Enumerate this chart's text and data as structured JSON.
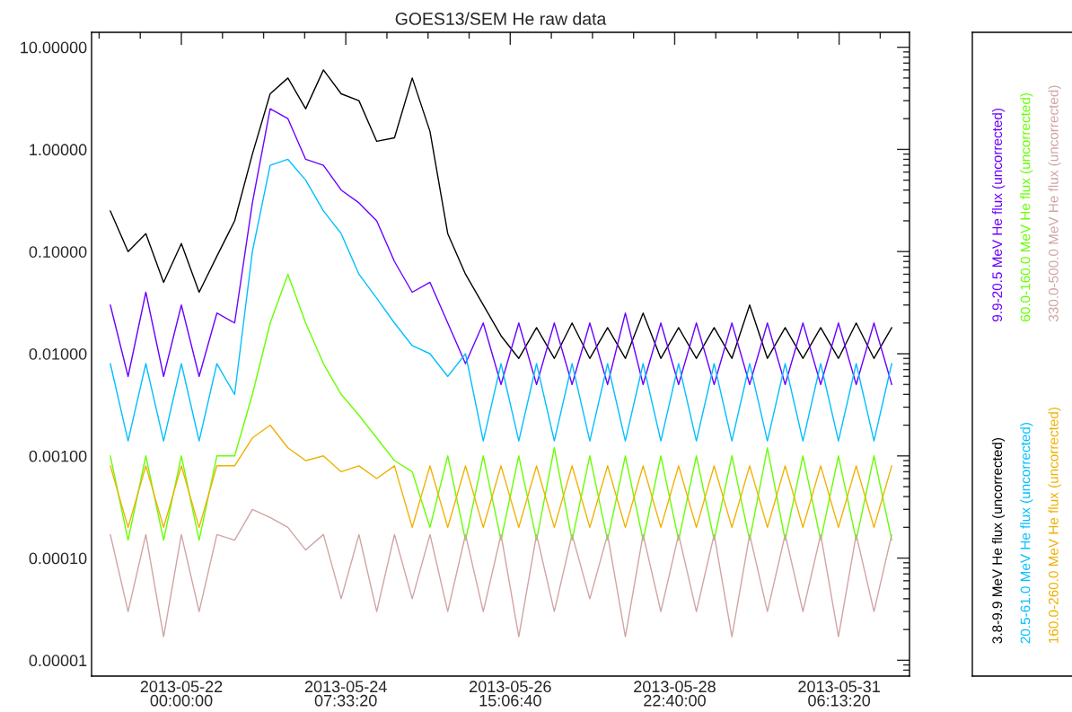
{
  "chart_data": {
    "type": "line",
    "title": "GOES13/SEM He raw data",
    "log": "y",
    "legend": "right",
    "line_style": "solid",
    "x": [
      "2013-05-21T00:00",
      "2013-05-21T06:00",
      "2013-05-21T12:00",
      "2013-05-21T18:00",
      "2013-05-22T00:00",
      "2013-05-22T06:00",
      "2013-05-22T12:00",
      "2013-05-22T18:00",
      "2013-05-23T00:00",
      "2013-05-23T06:00",
      "2013-05-23T12:00",
      "2013-05-23T18:00",
      "2013-05-24T00:00",
      "2013-05-24T06:00",
      "2013-05-24T12:00",
      "2013-05-24T18:00",
      "2013-05-25T00:00",
      "2013-05-25T06:00",
      "2013-05-25T12:00",
      "2013-05-25T18:00",
      "2013-05-26T00:00",
      "2013-05-26T06:00",
      "2013-05-26T12:00",
      "2013-05-26T18:00",
      "2013-05-27T00:00",
      "2013-05-27T06:00",
      "2013-05-27T12:00",
      "2013-05-27T18:00",
      "2013-05-28T00:00",
      "2013-05-28T06:00",
      "2013-05-28T12:00",
      "2013-05-28T18:00",
      "2013-05-29T00:00",
      "2013-05-29T06:00",
      "2013-05-29T12:00",
      "2013-05-29T18:00",
      "2013-05-30T00:00",
      "2013-05-30T06:00",
      "2013-05-30T12:00",
      "2013-05-30T18:00",
      "2013-05-31T00:00",
      "2013-05-31T06:00",
      "2013-05-31T12:00",
      "2013-05-31T18:00",
      "2013-06-01T00:00"
    ],
    "xlim": [
      "2013-05-20T17:40",
      "2013-06-01T06:00"
    ],
    "xticks": [
      {
        "value": "2013-05-20T20:13:20",
        "label": null
      },
      {
        "value": "2013-05-21T10:06:40",
        "label": null
      },
      {
        "value": "2013-05-22T00:00:00",
        "label": "2013-05-22\n00:00:00"
      },
      {
        "value": "2013-05-22T13:53:20",
        "label": null
      },
      {
        "value": "2013-05-23T03:46:40",
        "label": null
      },
      {
        "value": "2013-05-23T17:40:00",
        "label": null
      },
      {
        "value": "2013-05-24T07:33:20",
        "label": "2013-05-24\n07:33:20"
      },
      {
        "value": "2013-05-24T21:26:40",
        "label": null
      },
      {
        "value": "2013-05-25T11:20:00",
        "label": null
      },
      {
        "value": "2013-05-26T01:13:20",
        "label": null
      },
      {
        "value": "2013-05-26T15:06:40",
        "label": "2013-05-26\n15:06:40"
      },
      {
        "value": "2013-05-27T05:00:00",
        "label": null
      },
      {
        "value": "2013-05-27T18:53:20",
        "label": null
      },
      {
        "value": "2013-05-28T08:46:40",
        "label": null
      },
      {
        "value": "2013-05-28T22:40:00",
        "label": "2013-05-28\n22:40:00"
      },
      {
        "value": "2013-05-29T12:33:20",
        "label": null
      },
      {
        "value": "2013-05-30T02:26:40",
        "label": null
      },
      {
        "value": "2013-05-30T16:20:00",
        "label": null
      },
      {
        "value": "2013-05-31T06:13:20",
        "label": "2013-05-31\n06:13:20"
      },
      {
        "value": "2013-05-31T20:06:40",
        "label": null
      }
    ],
    "ylim": [
      7e-06,
      14
    ],
    "yticks": [
      {
        "value": 8e-06,
        "label": null
      },
      {
        "value": 9e-06,
        "label": null
      },
      {
        "value": 1e-05,
        "label": "0.00001"
      },
      {
        "value": 2e-05,
        "label": null
      },
      {
        "value": 3e-05,
        "label": null
      },
      {
        "value": 4e-05,
        "label": null
      },
      {
        "value": 5e-05,
        "label": null
      },
      {
        "value": 6e-05,
        "label": null
      },
      {
        "value": 7e-05,
        "label": null
      },
      {
        "value": 8e-05,
        "label": null
      },
      {
        "value": 9e-05,
        "label": null
      },
      {
        "value": 0.0001,
        "label": "0.00010"
      },
      {
        "value": 0.0002,
        "label": null
      },
      {
        "value": 0.0003,
        "label": null
      },
      {
        "value": 0.0004,
        "label": null
      },
      {
        "value": 0.0005,
        "label": null
      },
      {
        "value": 0.0006,
        "label": null
      },
      {
        "value": 0.0007,
        "label": null
      },
      {
        "value": 0.0008,
        "label": null
      },
      {
        "value": 0.0009,
        "label": null
      },
      {
        "value": 0.001,
        "label": "0.00100"
      },
      {
        "value": 0.002,
        "label": null
      },
      {
        "value": 0.003,
        "label": null
      },
      {
        "value": 0.004,
        "label": null
      },
      {
        "value": 0.005,
        "label": null
      },
      {
        "value": 0.006,
        "label": null
      },
      {
        "value": 0.007,
        "label": null
      },
      {
        "value": 0.008,
        "label": null
      },
      {
        "value": 0.009,
        "label": null
      },
      {
        "value": 0.01,
        "label": "0.01000"
      },
      {
        "value": 0.02,
        "label": null
      },
      {
        "value": 0.03,
        "label": null
      },
      {
        "value": 0.04,
        "label": null
      },
      {
        "value": 0.05,
        "label": null
      },
      {
        "value": 0.06,
        "label": null
      },
      {
        "value": 0.07,
        "label": null
      },
      {
        "value": 0.08,
        "label": null
      },
      {
        "value": 0.09,
        "label": null
      },
      {
        "value": 0.1,
        "label": "0.10000"
      },
      {
        "value": 0.2,
        "label": null
      },
      {
        "value": 0.3,
        "label": null
      },
      {
        "value": 0.4,
        "label": null
      },
      {
        "value": 0.5,
        "label": null
      },
      {
        "value": 0.6,
        "label": null
      },
      {
        "value": 0.7,
        "label": null
      },
      {
        "value": 0.8,
        "label": null
      },
      {
        "value": 0.9,
        "label": null
      },
      {
        "value": 1,
        "label": "1.00000"
      },
      {
        "value": 2,
        "label": null
      },
      {
        "value": 3,
        "label": null
      },
      {
        "value": 4,
        "label": null
      },
      {
        "value": 5,
        "label": null
      },
      {
        "value": 6,
        "label": null
      },
      {
        "value": 7,
        "label": null
      },
      {
        "value": 8,
        "label": null
      },
      {
        "value": 9,
        "label": null
      },
      {
        "value": 10,
        "label": "10.00000"
      }
    ],
    "series": [
      {
        "name": "3.8-9.9 MeV He flux (uncorrected)",
        "color": "#000000",
        "values": [
          0.25,
          0.1,
          0.15,
          0.05,
          0.12,
          0.04,
          0.09,
          0.2,
          0.9,
          3.5,
          5,
          2.5,
          6,
          3.5,
          3,
          1.2,
          1.3,
          5,
          1.5,
          0.15,
          0.06,
          0.03,
          0.015,
          0.009,
          0.018,
          0.009,
          0.02,
          0.009,
          0.018,
          0.009,
          0.025,
          0.009,
          0.018,
          0.009,
          0.018,
          0.009,
          0.03,
          0.009,
          0.018,
          0.009,
          0.018,
          0.009,
          0.02,
          0.009,
          0.018
        ]
      },
      {
        "name": "9.9-20.5 MeV He flux (uncorrected)",
        "color": "#6a00ff",
        "values": [
          0.03,
          0.006,
          0.04,
          0.006,
          0.03,
          0.006,
          0.025,
          0.02,
          0.3,
          2.5,
          2,
          0.8,
          0.7,
          0.4,
          0.3,
          0.2,
          0.08,
          0.04,
          0.05,
          0.02,
          0.008,
          0.02,
          0.005,
          0.02,
          0.005,
          0.02,
          0.005,
          0.02,
          0.005,
          0.025,
          0.005,
          0.02,
          0.005,
          0.02,
          0.005,
          0.02,
          0.005,
          0.02,
          0.005,
          0.02,
          0.005,
          0.02,
          0.005,
          0.02,
          0.005
        ]
      },
      {
        "name": "20.5-61.0 MeV He flux (uncorrected)",
        "color": "#00bfff",
        "values": [
          0.008,
          0.0014,
          0.008,
          0.0014,
          0.008,
          0.0014,
          0.008,
          0.004,
          0.1,
          0.7,
          0.8,
          0.5,
          0.25,
          0.15,
          0.06,
          0.035,
          0.02,
          0.012,
          0.01,
          0.006,
          0.01,
          0.0014,
          0.008,
          0.0014,
          0.008,
          0.0014,
          0.008,
          0.0014,
          0.008,
          0.0014,
          0.008,
          0.0014,
          0.008,
          0.0014,
          0.008,
          0.0014,
          0.008,
          0.0014,
          0.008,
          0.0014,
          0.008,
          0.0014,
          0.008,
          0.0014,
          0.008
        ]
      },
      {
        "name": "60.0-160.0 MeV He flux (uncorrected)",
        "color": "#66ff00",
        "values": [
          0.001,
          0.00015,
          0.001,
          0.00015,
          0.001,
          0.00015,
          0.001,
          0.001,
          0.004,
          0.02,
          0.06,
          0.02,
          0.008,
          0.004,
          0.0025,
          0.0015,
          0.0009,
          0.0007,
          0.0002,
          0.001,
          0.00015,
          0.001,
          0.00015,
          0.001,
          0.00015,
          0.0012,
          0.00015,
          0.001,
          0.00015,
          0.001,
          0.00015,
          0.001,
          0.00015,
          0.001,
          0.00015,
          0.001,
          0.00015,
          0.0012,
          0.00015,
          0.001,
          0.00015,
          0.001,
          0.00015,
          0.001,
          0.00015
        ]
      },
      {
        "name": "160.0-260.0 MeV He flux (uncorrected)",
        "color": "#f0b000",
        "values": [
          0.0008,
          0.0002,
          0.0008,
          0.0002,
          0.0008,
          0.0002,
          0.0008,
          0.0008,
          0.0015,
          0.002,
          0.0012,
          0.0009,
          0.001,
          0.0007,
          0.0008,
          0.0006,
          0.0008,
          0.0002,
          0.0008,
          0.0002,
          0.0008,
          0.0002,
          0.0008,
          0.0002,
          0.0008,
          0.0002,
          0.0008,
          0.0002,
          0.0008,
          0.0002,
          0.0008,
          0.0002,
          0.0008,
          0.0002,
          0.0008,
          0.0002,
          0.0008,
          0.0002,
          0.0008,
          0.0002,
          0.0008,
          0.0002,
          0.0008,
          0.0002,
          0.0008
        ]
      },
      {
        "name": "330.0-500.0 MeV He flux (uncorrected)",
        "color": "#d0a4a4",
        "values": [
          0.00017,
          3e-05,
          0.00017,
          1.7e-05,
          0.00017,
          3e-05,
          0.00017,
          0.00015,
          0.0003,
          0.00025,
          0.0002,
          0.00012,
          0.00017,
          4e-05,
          0.00017,
          3e-05,
          0.00017,
          4e-05,
          0.00017,
          3e-05,
          0.00017,
          3e-05,
          0.00017,
          1.7e-05,
          0.00017,
          3e-05,
          0.00017,
          4e-05,
          0.00017,
          1.7e-05,
          0.00017,
          3e-05,
          0.00017,
          3e-05,
          0.00017,
          1.7e-05,
          0.00017,
          3e-05,
          0.00017,
          3e-05,
          0.00017,
          1.7e-05,
          0.00017,
          3e-05,
          0.00017
        ]
      }
    ]
  }
}
